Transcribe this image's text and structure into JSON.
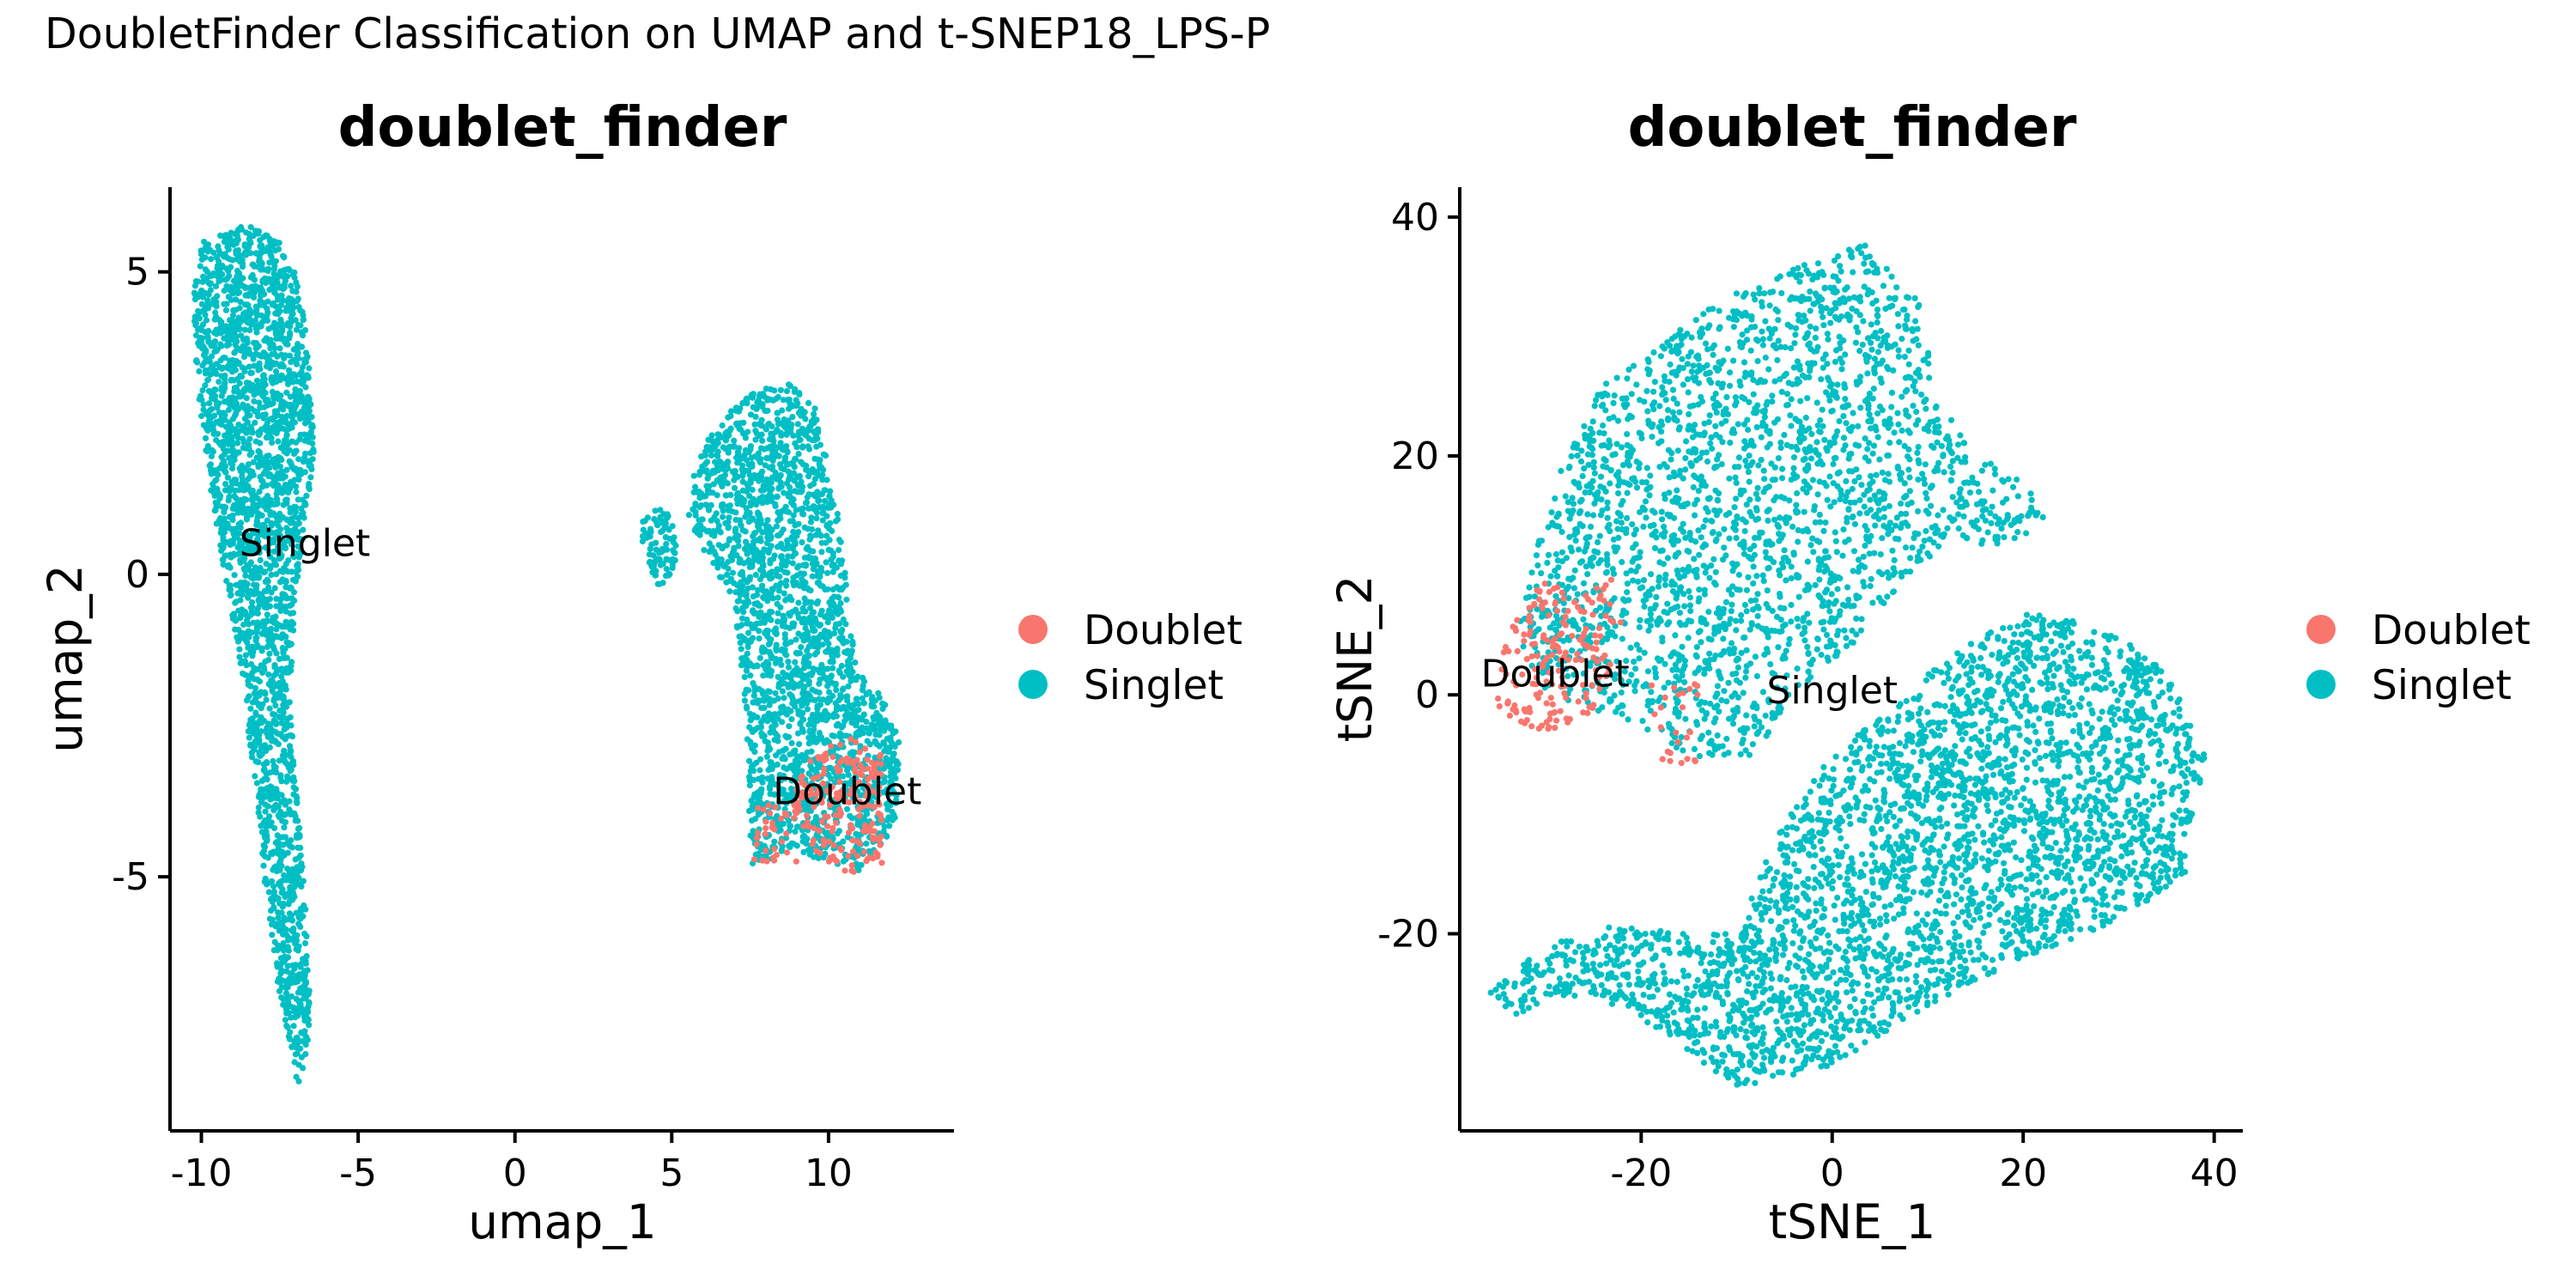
{
  "figure": {
    "suptitle": "DoubletFinder Classification on UMAP and t-SNEP18_LPS-P"
  },
  "chart_data": [
    {
      "type": "scatter",
      "title": "doublet_finder",
      "xlabel": "umap_1",
      "ylabel": "umap_2",
      "xlim": [
        -11,
        14
      ],
      "ylim": [
        -9.2,
        6.4
      ],
      "xticks": [
        {
          "value": -10,
          "label": "-10"
        },
        {
          "value": -5,
          "label": "-5"
        },
        {
          "value": 0,
          "label": "0"
        },
        {
          "value": 5,
          "label": "5"
        },
        {
          "value": 10,
          "label": "10"
        }
      ],
      "yticks": [
        {
          "value": -5,
          "label": "-5"
        },
        {
          "value": 0,
          "label": "0"
        },
        {
          "value": 5,
          "label": "5"
        }
      ],
      "legend": {
        "placement": "right",
        "entries": [
          {
            "label": "Doublet",
            "color": "#F8766D"
          },
          {
            "label": "Singlet",
            "color": "#00BFC4"
          }
        ]
      },
      "annotations": [
        {
          "text": "Singlet",
          "x": -6.7,
          "y": 0.3
        },
        {
          "text": "Doublet",
          "x": 10.6,
          "y": -3.8
        }
      ],
      "clusters": [
        {
          "class": "Singlet",
          "color": "#00BFC4",
          "polygon": [
            [
              -10,
              5.5
            ],
            [
              -8.5,
              5.8
            ],
            [
              -7.2,
              5.4
            ],
            [
              -6.6,
              4
            ],
            [
              -6.4,
              2
            ],
            [
              -6.9,
              0
            ],
            [
              -7.2,
              -2
            ],
            [
              -6.9,
              -4
            ],
            [
              -6.6,
              -6
            ],
            [
              -6.5,
              -7.5
            ],
            [
              -6.9,
              -8.5
            ],
            [
              -7.5,
              -7
            ],
            [
              -8,
              -5
            ],
            [
              -8.4,
              -3
            ],
            [
              -8.9,
              -1
            ],
            [
              -9.6,
              1
            ],
            [
              -10.1,
              3
            ],
            [
              -10.3,
              4.5
            ]
          ],
          "count": 2600
        },
        {
          "class": "Singlet",
          "color": "#00BFC4",
          "polygon": [
            [
              5.8,
              2
            ],
            [
              7.2,
              2.9
            ],
            [
              8.6,
              3.2
            ],
            [
              9.6,
              2.8
            ],
            [
              10.3,
              1
            ],
            [
              10.9,
              -1.5
            ],
            [
              11.7,
              -2
            ],
            [
              12.3,
              -2.8
            ],
            [
              12.1,
              -4.2
            ],
            [
              11,
              -4.9
            ],
            [
              9,
              -4.6
            ],
            [
              7.5,
              -4.8
            ],
            [
              7.4,
              -2.5
            ],
            [
              7,
              -0.5
            ],
            [
              6.1,
              0.3
            ],
            [
              5.5,
              1
            ]
          ],
          "count": 2300
        },
        {
          "class": "Singlet",
          "color": "#00BFC4",
          "polygon": [
            [
              4,
              1
            ],
            [
              4.9,
              1.1
            ],
            [
              5.2,
              0.6
            ],
            [
              5.1,
              0
            ],
            [
              4.6,
              -0.2
            ],
            [
              4.1,
              0.3
            ]
          ],
          "count": 90
        },
        {
          "class": "Doublet",
          "color": "#F8766D",
          "polygon": [
            [
              9.1,
              -3.2
            ],
            [
              10.4,
              -2.6
            ],
            [
              11.7,
              -3
            ],
            [
              11.7,
              -4.8
            ],
            [
              10.5,
              -5
            ],
            [
              9.6,
              -4.6
            ],
            [
              8.8,
              -4
            ]
          ],
          "count": 200
        },
        {
          "class": "Doublet",
          "color": "#F8766D",
          "polygon": [
            [
              7.6,
              -3.8
            ],
            [
              8.8,
              -3.8
            ],
            [
              9,
              -4.8
            ],
            [
              7.5,
              -4.8
            ]
          ],
          "count": 30
        }
      ]
    },
    {
      "type": "scatter",
      "title": "doublet_finder",
      "xlabel": "tSNE_1",
      "ylabel": "tSNE_2",
      "xlim": [
        -39,
        43
      ],
      "ylim": [
        -36.5,
        42.5
      ],
      "xticks": [
        {
          "value": -20,
          "label": "-20"
        },
        {
          "value": 0,
          "label": "0"
        },
        {
          "value": 20,
          "label": "20"
        },
        {
          "value": 40,
          "label": "40"
        }
      ],
      "yticks": [
        {
          "value": -20,
          "label": "-20"
        },
        {
          "value": 0,
          "label": "0"
        },
        {
          "value": 20,
          "label": "20"
        },
        {
          "value": 40,
          "label": "40"
        }
      ],
      "legend": {
        "placement": "right",
        "entries": [
          {
            "label": "Doublet",
            "color": "#F8766D"
          },
          {
            "label": "Singlet",
            "color": "#00BFC4"
          }
        ]
      },
      "annotations": [
        {
          "text": "Doublet",
          "x": -29,
          "y": 0.7
        },
        {
          "text": "Singlet",
          "x": 0,
          "y": -0.7
        }
      ],
      "clusters": [
        {
          "class": "Singlet",
          "color": "#00BFC4",
          "polygon": [
            [
              -29,
              18
            ],
            [
              -24,
              26
            ],
            [
              -17,
              30
            ],
            [
              -10,
              34
            ],
            [
              -3,
              36
            ],
            [
              4,
              38
            ],
            [
              9,
              33
            ],
            [
              11,
              25
            ],
            [
              15,
              20
            ],
            [
              20,
              18
            ],
            [
              23,
              15
            ],
            [
              18,
              12
            ],
            [
              12,
              13
            ],
            [
              7,
              9
            ],
            [
              2,
              4
            ],
            [
              -4,
              0
            ],
            [
              -9,
              -6
            ],
            [
              -15,
              -5
            ],
            [
              -22,
              -2
            ],
            [
              -30,
              0
            ],
            [
              -33,
              5
            ],
            [
              -31,
              12
            ]
          ],
          "count": 2400
        },
        {
          "class": "Singlet",
          "color": "#00BFC4",
          "polygon": [
            [
              -36,
              -25
            ],
            [
              -30,
              -21
            ],
            [
              -22,
              -19
            ],
            [
              -16,
              -20
            ],
            [
              -10,
              -20
            ],
            [
              -6,
              -12
            ],
            [
              -1,
              -6
            ],
            [
              6,
              -1
            ],
            [
              12,
              3
            ],
            [
              20,
              7
            ],
            [
              28,
              6
            ],
            [
              35,
              2
            ],
            [
              39,
              -5
            ],
            [
              37,
              -15
            ],
            [
              30,
              -19
            ],
            [
              20,
              -22
            ],
            [
              10,
              -26
            ],
            [
              0,
              -31
            ],
            [
              -10,
              -33
            ],
            [
              -18,
              -28
            ],
            [
              -26,
              -25
            ],
            [
              -33,
              -27
            ]
          ],
          "count": 3300
        },
        {
          "class": "Doublet",
          "color": "#F8766D",
          "polygon": [
            [
              -35,
              4
            ],
            [
              -30,
              10
            ],
            [
              -25,
              8
            ],
            [
              -23,
              2
            ],
            [
              -26,
              -3
            ],
            [
              -32,
              -3
            ],
            [
              -35,
              -1
            ]
          ],
          "count": 170
        },
        {
          "class": "Doublet",
          "color": "#F8766D",
          "polygon": [
            [
              -19,
              1
            ],
            [
              -14,
              1
            ],
            [
              -14,
              -6
            ],
            [
              -18,
              -6
            ]
          ],
          "count": 25
        },
        {
          "class": "Doublet",
          "color": "#F8766D",
          "polygon": [
            [
              -25,
              10
            ],
            [
              -22,
              10
            ],
            [
              -22,
              6
            ],
            [
              -25,
              6
            ]
          ],
          "count": 12
        }
      ]
    }
  ]
}
